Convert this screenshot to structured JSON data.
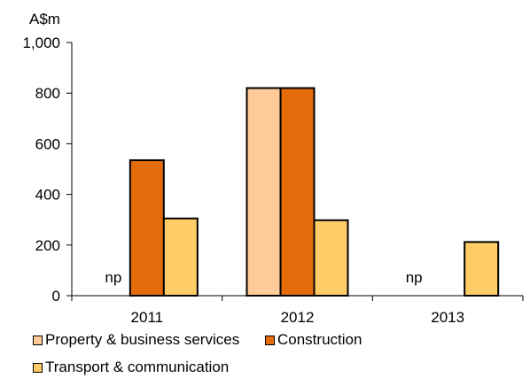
{
  "chart_data": {
    "type": "bar",
    "unit_label": "A$m",
    "categories": [
      "2011",
      "2012",
      "2013"
    ],
    "ylim": [
      0,
      1000
    ],
    "yticks": [
      0,
      200,
      400,
      600,
      800,
      1000
    ],
    "ytick_labels": [
      "0",
      "200",
      "400",
      "600",
      "800",
      "1,000"
    ],
    "grid": false,
    "legend_position": "bottom",
    "series": [
      {
        "name": "Property & business services",
        "color": "#FFCC99",
        "values": [
          null,
          820,
          null
        ]
      },
      {
        "name": "Construction",
        "color": "#E46C0A",
        "values": [
          535,
          820,
          null
        ]
      },
      {
        "name": "Transport & communication",
        "color": "#FFCC66",
        "values": [
          305,
          298,
          212
        ]
      }
    ],
    "annotations": [
      {
        "category": "2011",
        "text": "np"
      },
      {
        "category": "2013",
        "text": "np"
      }
    ]
  }
}
